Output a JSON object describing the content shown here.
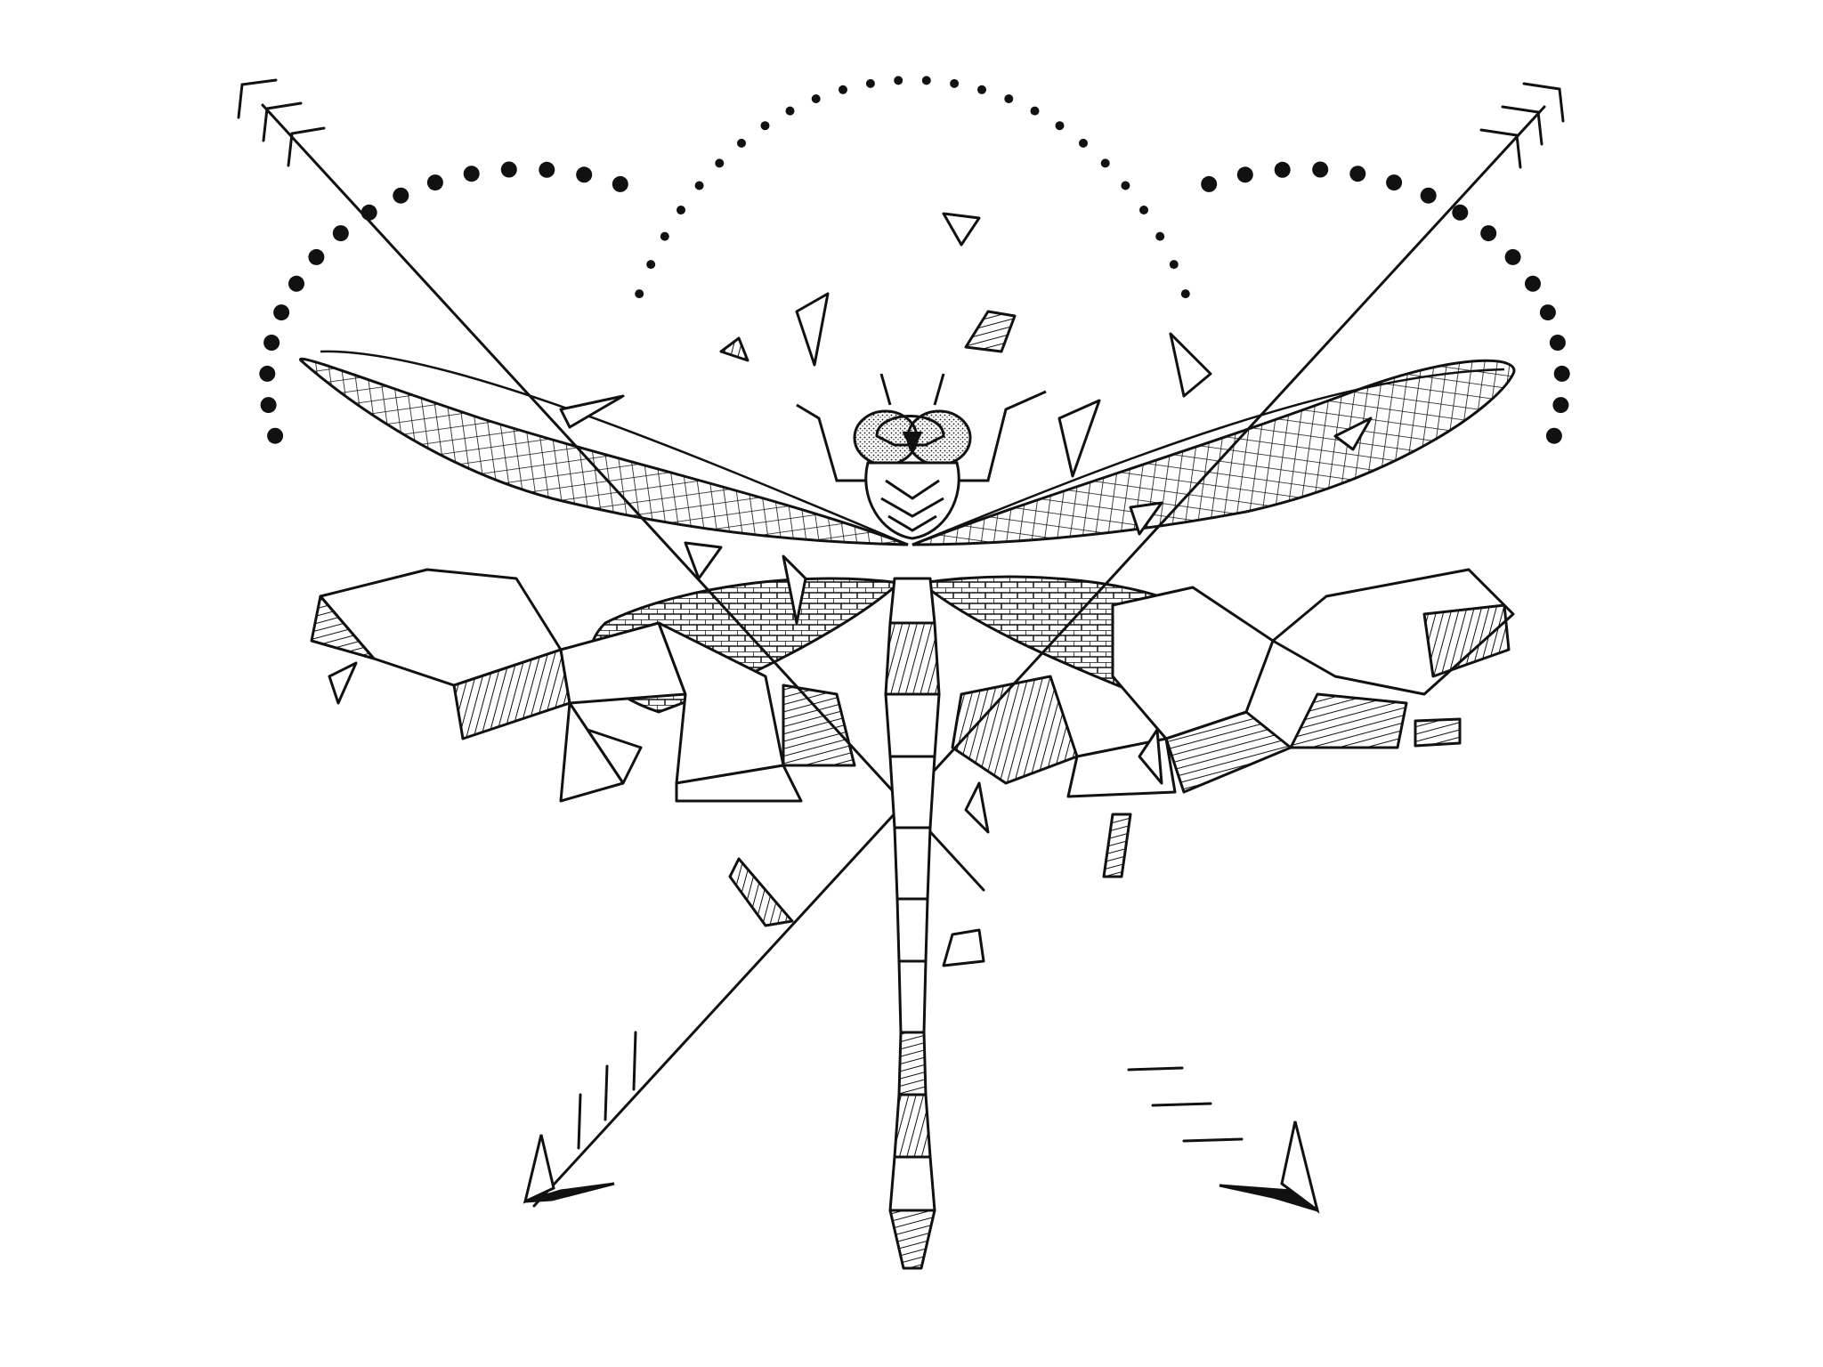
{
  "artwork": {
    "subject": "dragonfly-with-crossed-arrows-line-drawing",
    "colors": {
      "ink": "#111111",
      "paper": "#ffffff",
      "wash": "#cfcfcf"
    },
    "elements": [
      "crossed-arrows",
      "dotted-arcs",
      "dragonfly",
      "geometric-crystals",
      "shard-fragments"
    ]
  }
}
